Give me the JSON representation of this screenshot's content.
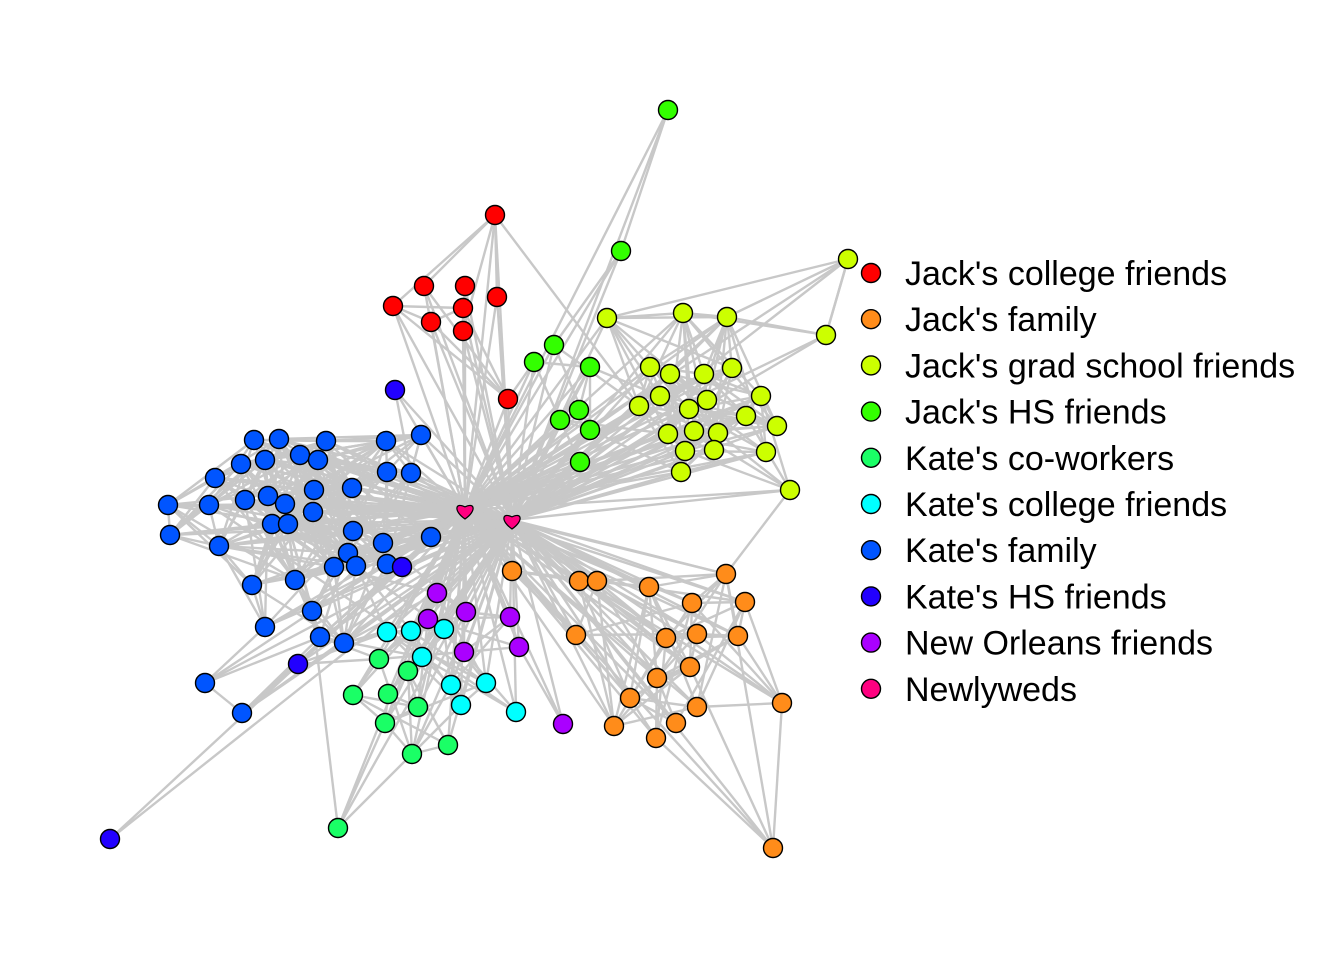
{
  "legend": [
    {
      "label": "Jack's college friends",
      "color": "#ff0000"
    },
    {
      "label": "Jack's family",
      "color": "#ff8c1a"
    },
    {
      "label": "Jack's grad school friends",
      "color": "#ccff00"
    },
    {
      "label": "Jack's HS friends",
      "color": "#33ff00"
    },
    {
      "label": "Kate's co-workers",
      "color": "#1aff66"
    },
    {
      "label": "Kate's college friends",
      "color": "#00ffff"
    },
    {
      "label": "Kate's family",
      "color": "#0055ff"
    },
    {
      "label": "Kate's HS friends",
      "color": "#2200ff"
    },
    {
      "label": "New Orleans friends",
      "color": "#aa00ff"
    },
    {
      "label": "Newlyweds",
      "color": "#ff0080"
    }
  ],
  "node_shapes": {
    "default": "circle",
    "Newlyweds": "heart"
  },
  "edge_color": "#c8c8c8"
}
